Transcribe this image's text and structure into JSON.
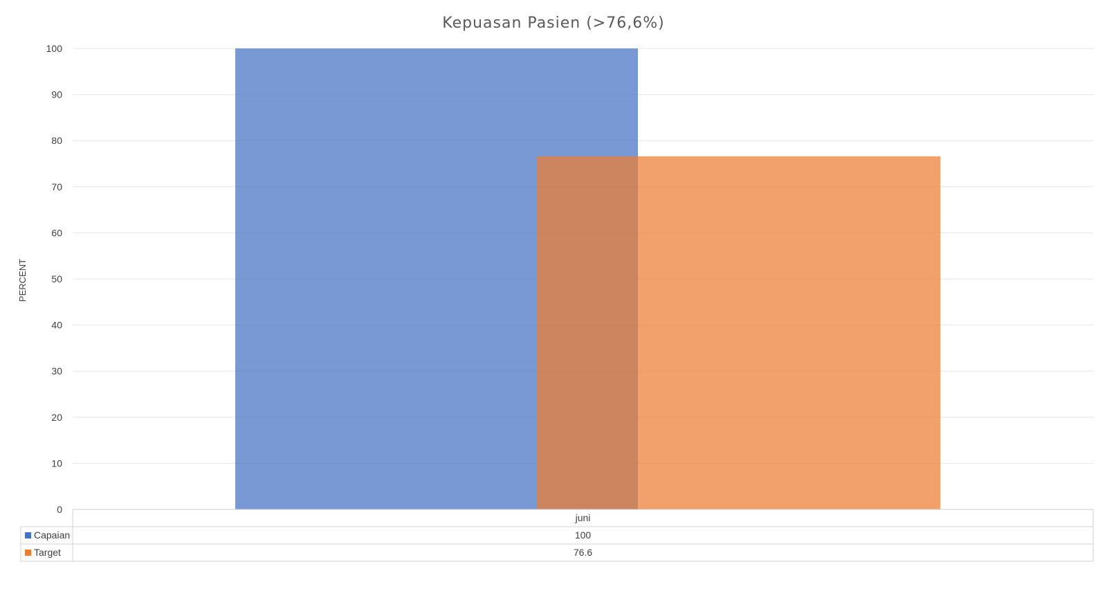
{
  "chart_data": {
    "type": "bar",
    "title": "Kepuasan Pasien (>76,6%)",
    "ylabel": "PERCENT",
    "xlabel": "",
    "ylim": [
      0,
      100
    ],
    "yticks": [
      0,
      10,
      20,
      30,
      40,
      50,
      60,
      70,
      80,
      90,
      100
    ],
    "categories": [
      "juni"
    ],
    "series": [
      {
        "name": "Capaian",
        "values": [
          100
        ],
        "color": "#4472C4",
        "display": [
          "100"
        ]
      },
      {
        "name": "Target",
        "values": [
          76.6
        ],
        "color": "#ED7D31",
        "display": [
          "76.6"
        ]
      }
    ],
    "grid": true,
    "legend": "data-table"
  }
}
